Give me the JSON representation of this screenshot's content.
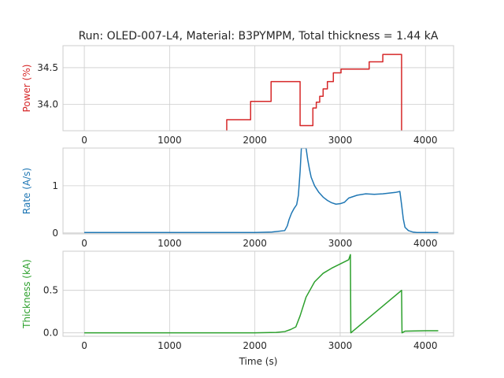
{
  "chart_data": {
    "title": "Run: OLED-007-L4, Material: B3PYMPM, Total thickness = 1.44 kA",
    "xlabel": "Time (s)",
    "grid": true,
    "colors": {
      "power": "#d62728",
      "rate": "#1f77b4",
      "thickness": "#2ca02c",
      "grid": "#cccccc"
    },
    "panels": [
      {
        "type": "line",
        "ylabel": "Power (%)",
        "color": "#d62728",
        "xlim": [
          -250,
          4330
        ],
        "ylim": [
          33.64,
          34.8
        ],
        "xticks": [
          0,
          1000,
          2000,
          3000,
          4000
        ],
        "yticks": [
          34.0,
          34.5
        ],
        "ytick_labels": [
          "34.0",
          "34.5"
        ],
        "series": [
          {
            "x": [
              1670,
              1670,
              1950,
              1950,
              2190,
              2190,
              2530,
              2530,
              2680,
              2680,
              2720,
              2720,
              2760,
              2760,
              2800,
              2800,
              2850,
              2850,
              2920,
              2920,
              3010,
              3010,
              3340,
              3340,
              3500,
              3500,
              3720,
              3720
            ],
            "y": [
              33.64,
              33.79,
              33.79,
              34.04,
              34.04,
              34.31,
              34.31,
              33.71,
              33.71,
              33.95,
              33.95,
              34.03,
              34.03,
              34.11,
              34.11,
              34.21,
              34.21,
              34.31,
              34.31,
              34.43,
              34.43,
              34.48,
              34.48,
              34.58,
              34.58,
              34.68,
              34.68,
              33.64
            ]
          }
        ]
      },
      {
        "type": "line",
        "ylabel": "Rate (A/s)",
        "color": "#1f77b4",
        "xlim": [
          -250,
          4330
        ],
        "ylim": [
          -0.02,
          1.8
        ],
        "xticks": [
          0,
          1000,
          2000,
          3000,
          4000
        ],
        "yticks": [
          0,
          1
        ],
        "ytick_labels": [
          "0",
          "1"
        ],
        "series": [
          {
            "x": [
              0,
              500,
              1000,
              1500,
              2000,
              2200,
              2350,
              2380,
              2400,
              2430,
              2460,
              2490,
              2510,
              2530,
              2545,
              2600,
              2620,
              2640,
              2660,
              2700,
              2750,
              2800,
              2850,
              2900,
              2950,
              3000,
              3050,
              3100,
              3200,
              3300,
              3400,
              3500,
              3600,
              3650,
              3700,
              3720,
              3740,
              3760,
              3800,
              3850,
              3900,
              4000,
              4100,
              4150
            ],
            "y": [
              0.01,
              0.01,
              0.01,
              0.01,
              0.01,
              0.02,
              0.05,
              0.15,
              0.28,
              0.42,
              0.52,
              0.6,
              0.8,
              1.3,
              1.8,
              1.8,
              1.55,
              1.35,
              1.18,
              1.0,
              0.86,
              0.76,
              0.69,
              0.64,
              0.61,
              0.62,
              0.65,
              0.74,
              0.8,
              0.83,
              0.82,
              0.83,
              0.85,
              0.86,
              0.88,
              0.6,
              0.3,
              0.12,
              0.05,
              0.02,
              0.01,
              0.01,
              0.01,
              0.01
            ]
          }
        ]
      },
      {
        "type": "line",
        "ylabel": "Thickness (kA)",
        "color": "#2ca02c",
        "xlim": [
          -250,
          4330
        ],
        "ylim": [
          -0.04,
          0.96
        ],
        "xticks": [
          0,
          1000,
          2000,
          3000,
          4000
        ],
        "yticks": [
          0.0,
          0.5
        ],
        "ytick_labels": [
          "0.0",
          "0.5"
        ],
        "xtick_labels": [
          "0",
          "1000",
          "2000",
          "3000",
          "4000"
        ],
        "series": [
          {
            "x": [
              0,
              1000,
              2000,
              2250,
              2350,
              2420,
              2480,
              2530,
              2600,
              2700,
              2800,
              2900,
              3000,
              3100,
              3120,
              3125,
              3720,
              3725,
              3760,
              4000,
              4150
            ],
            "y": [
              0.0,
              0.0,
              0.0,
              0.005,
              0.015,
              0.04,
              0.07,
              0.2,
              0.42,
              0.6,
              0.7,
              0.76,
              0.81,
              0.86,
              0.92,
              0.0,
              0.5,
              0.0,
              0.02,
              0.025,
              0.025
            ]
          }
        ]
      }
    ]
  }
}
